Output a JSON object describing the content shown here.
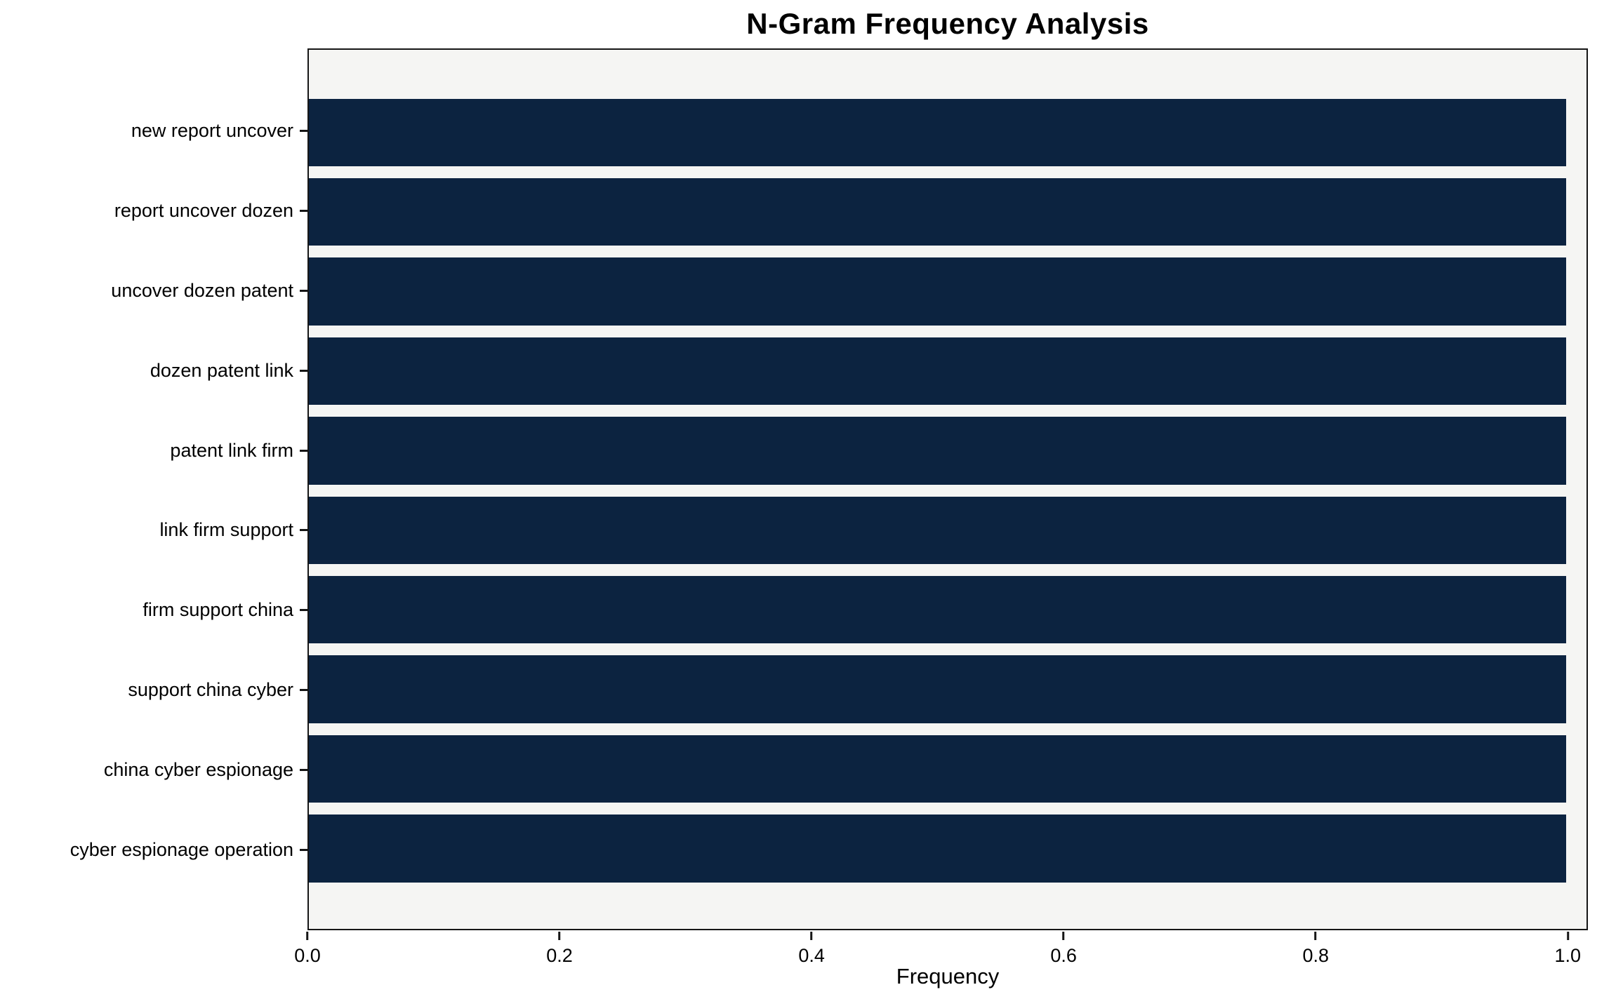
{
  "chart_data": {
    "type": "bar",
    "orientation": "horizontal",
    "title": "N-Gram Frequency Analysis",
    "xlabel": "Frequency",
    "ylabel": "",
    "categories": [
      "new report uncover",
      "report uncover dozen",
      "uncover dozen patent",
      "dozen patent link",
      "patent link firm",
      "link firm support",
      "firm support china",
      "support china cyber",
      "china cyber espionage",
      "cyber espionage operation"
    ],
    "values": [
      1.0,
      1.0,
      1.0,
      1.0,
      1.0,
      1.0,
      1.0,
      1.0,
      1.0,
      1.0
    ],
    "xlim": [
      0,
      1.016
    ],
    "xticks": [
      {
        "value": 0.0,
        "label": "0.0"
      },
      {
        "value": 0.2,
        "label": "0.2"
      },
      {
        "value": 0.4,
        "label": "0.4"
      },
      {
        "value": 0.6,
        "label": "0.6"
      },
      {
        "value": 0.8,
        "label": "0.8"
      },
      {
        "value": 1.0,
        "label": "1.0"
      }
    ],
    "grid": false,
    "legend": null,
    "colors": {
      "bar": "#0c2340",
      "plot_bg": "#f5f5f3",
      "figure_bg": "#ffffff",
      "spine": "#161616",
      "text": "#000000"
    }
  }
}
